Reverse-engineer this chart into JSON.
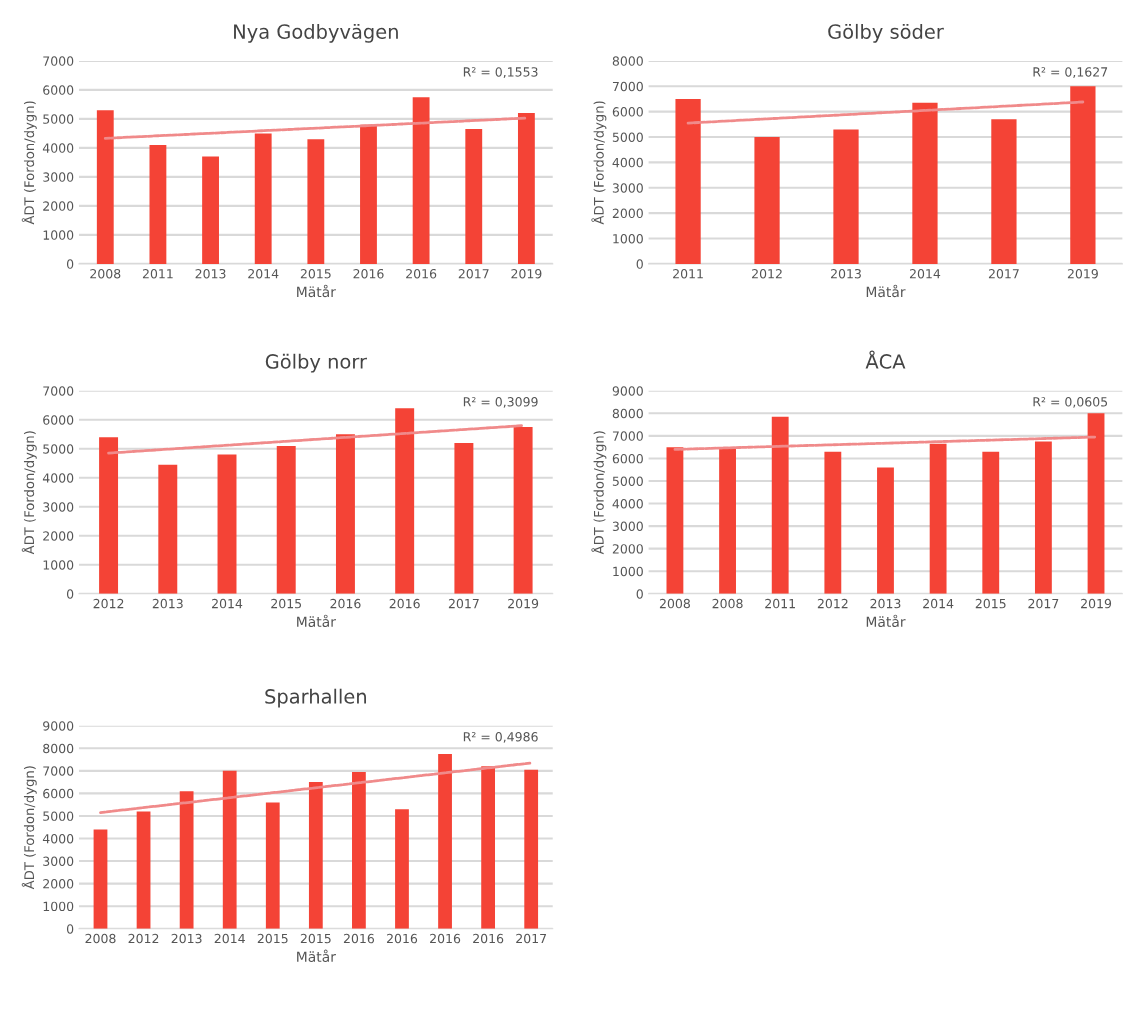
{
  "chart_data": [
    {
      "type": "bar",
      "title": "Nya Godbyvägen",
      "xlabel": "Mätår",
      "ylabel": "ÅDT (Fordon/dygn)",
      "categories": [
        "2008",
        "2011",
        "2013",
        "2014",
        "2015",
        "2016",
        "2016",
        "2017",
        "2019"
      ],
      "ylim": [
        0,
        7000
      ],
      "yticks": [
        0,
        1000,
        2000,
        3000,
        4000,
        5000,
        6000,
        7000
      ],
      "grid": "y",
      "annotations": [
        "R² = 0,1553"
      ],
      "series": [
        {
          "color": "#f44336",
          "values": [
            5300,
            4100,
            3700,
            4500,
            4300,
            4800,
            5750,
            4650,
            5200
          ]
        },
        {
          "type": "line",
          "color": "#f08a8a",
          "line_style": "dotted",
          "values": [
            4330,
            null,
            null,
            null,
            null,
            null,
            null,
            null,
            5030
          ]
        }
      ]
    },
    {
      "type": "bar",
      "title": "Gölby söder",
      "xlabel": "Mätår",
      "ylabel": "ÅDT (Fordon/dygn)",
      "categories": [
        "2011",
        "2012",
        "2013",
        "2014",
        "2017",
        "2019"
      ],
      "ylim": [
        0,
        8000
      ],
      "yticks": [
        0,
        1000,
        2000,
        3000,
        4000,
        5000,
        6000,
        7000,
        8000
      ],
      "grid": "y",
      "annotations": [
        "R² = 0,1627"
      ],
      "series": [
        {
          "color": "#f44336",
          "values": [
            6500,
            5000,
            5300,
            6350,
            5700,
            7000
          ]
        },
        {
          "type": "line",
          "color": "#f08a8a",
          "line_style": "dotted",
          "values": [
            5550,
            null,
            null,
            null,
            null,
            6380
          ]
        }
      ]
    },
    {
      "type": "bar",
      "title": "Gölby norr",
      "xlabel": "Mätår",
      "ylabel": "ÅDT (Fordon/dygn)",
      "categories": [
        "2012",
        "2013",
        "2014",
        "2015",
        "2016",
        "2016",
        "2017",
        "2019"
      ],
      "ylim": [
        0,
        7000
      ],
      "yticks": [
        0,
        1000,
        2000,
        3000,
        4000,
        5000,
        6000,
        7000
      ],
      "grid": "y",
      "annotations": [
        "R² = 0,3099"
      ],
      "series": [
        {
          "color": "#f44336",
          "values": [
            5400,
            4450,
            4800,
            5100,
            5500,
            6400,
            5200,
            5750
          ]
        },
        {
          "type": "line",
          "color": "#f08a8a",
          "line_style": "dotted",
          "values": [
            4850,
            null,
            null,
            null,
            null,
            null,
            null,
            5800
          ]
        }
      ]
    },
    {
      "type": "bar",
      "title": "ÅCA",
      "xlabel": "Mätår",
      "ylabel": "ÅDT (Fordon/dygn)",
      "categories": [
        "2008",
        "2008",
        "2011",
        "2012",
        "2013",
        "2014",
        "2015",
        "2017",
        "2019"
      ],
      "ylim": [
        0,
        9000
      ],
      "yticks": [
        0,
        1000,
        2000,
        3000,
        4000,
        5000,
        6000,
        7000,
        8000,
        9000
      ],
      "grid": "y",
      "annotations": [
        "R² = 0,0605"
      ],
      "series": [
        {
          "color": "#f44336",
          "values": [
            6500,
            6500,
            7850,
            6300,
            5600,
            6650,
            6300,
            6750,
            8000
          ]
        },
        {
          "type": "line",
          "color": "#f08a8a",
          "line_style": "dotted",
          "values": [
            6400,
            null,
            null,
            null,
            null,
            null,
            null,
            null,
            6950
          ]
        }
      ]
    },
    {
      "type": "bar",
      "title": "Sparhallen",
      "xlabel": "Mätår",
      "ylabel": "ÅDT (Fordon/dygn)",
      "categories": [
        "2008",
        "2012",
        "2013",
        "2014",
        "2015",
        "2015",
        "2016",
        "2016",
        "2016",
        "2016",
        "2017"
      ],
      "ylim": [
        0,
        9000
      ],
      "yticks": [
        0,
        1000,
        2000,
        3000,
        4000,
        5000,
        6000,
        7000,
        8000,
        9000
      ],
      "grid": "y",
      "annotations": [
        "R² = 0,4986"
      ],
      "series": [
        {
          "color": "#f44336",
          "values": [
            4400,
            5200,
            6100,
            7000,
            5600,
            6500,
            6950,
            5300,
            7750,
            7200,
            7050
          ]
        },
        {
          "type": "line",
          "color": "#f08a8a",
          "line_style": "dotted",
          "values": [
            5150,
            null,
            null,
            null,
            null,
            null,
            null,
            null,
            null,
            null,
            7350
          ]
        }
      ]
    }
  ]
}
